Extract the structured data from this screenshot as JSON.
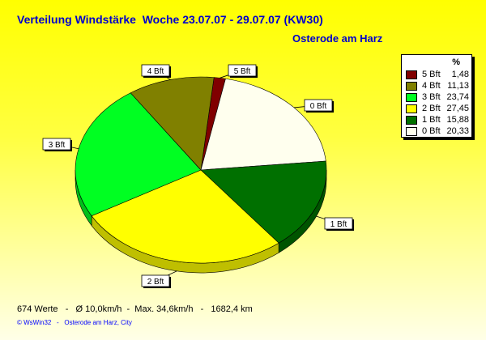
{
  "chart_data": {
    "type": "pie",
    "title": "Verteilung Windstärke  Woche 23.07.07 - 29.07.07 (KW30)",
    "subtitle": "Osterode am Harz",
    "legend_header": "%",
    "legend_placement": "right",
    "slices": [
      {
        "label": "5 Bft",
        "value": 1.48,
        "value_text": "1,48",
        "color": "#800000"
      },
      {
        "label": "0 Bft",
        "value": 20.33,
        "value_text": "20,33",
        "color": "#ffffee"
      },
      {
        "label": "1 Bft",
        "value": 15.88,
        "value_text": "15,88",
        "color": "#007000"
      },
      {
        "label": "2 Bft",
        "value": 27.45,
        "value_text": "27,45",
        "color": "#ffff00"
      },
      {
        "label": "3 Bft",
        "value": 23.74,
        "value_text": "23,74",
        "color": "#00ff22"
      },
      {
        "label": "4 Bft",
        "value": 11.13,
        "value_text": "11,13",
        "color": "#808000"
      }
    ],
    "legend_order": [
      "5 Bft",
      "4 Bft",
      "3 Bft",
      "2 Bft",
      "1 Bft",
      "0 Bft"
    ]
  },
  "footer": {
    "stats": "674 Werte   -   Ø 10,0km/h  -  Max. 34,6km/h   -   1682,4 km",
    "copyright": "© WsWin32   -   Osterode am Harz, City"
  }
}
